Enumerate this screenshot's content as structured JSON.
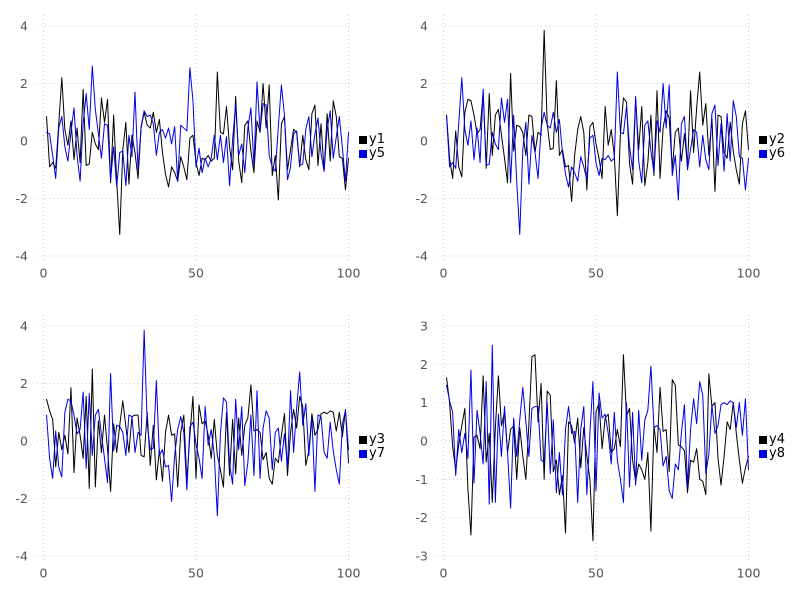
{
  "colors": {
    "series_black": "#000000",
    "series_blue": "#0000e6",
    "grid": "#c9c9e0",
    "tick_label": "#555555",
    "legend_text": "#000000",
    "background": "#ffffff"
  },
  "chart_data": [
    {
      "type": "line",
      "panel": "top-left",
      "title": "",
      "xlabel": "",
      "ylabel": "",
      "xlim": [
        0,
        100
      ],
      "ylim": [
        -4,
        4
      ],
      "x_ticks": [
        0,
        50,
        100
      ],
      "y_ticks": [
        -4,
        -2,
        0,
        2,
        4
      ],
      "grid": "dotted",
      "legend_position": "middle-right",
      "x_start": 1,
      "series": [
        {
          "name": "y1",
          "color": "#000000",
          "values": [
            0.85,
            -0.9,
            -0.75,
            -0.95,
            0.6,
            2.2,
            0.4,
            -0.15,
            0.7,
            -0.65,
            0.45,
            -0.75,
            1.8,
            -0.85,
            -0.8,
            0.3,
            -0.1,
            -0.3,
            1.5,
            0.65,
            1.45,
            -1.45,
            0.9,
            -1.4,
            -3.25,
            -0.3,
            0.65,
            -1.5,
            0.2,
            -0.4,
            -1.3,
            0.45,
            1.0,
            0.55,
            0.45,
            1.0,
            0.3,
            0.75,
            -0.4,
            -1.15,
            -1.6,
            -0.9,
            -1.1,
            -1.4,
            -0.55,
            -0.9,
            -1.35,
            0.1,
            0.2,
            -0.75,
            -1.2,
            -0.6,
            -0.65,
            -0.5,
            -0.7,
            -0.6,
            2.4,
            0.3,
            0.25,
            1.2,
            -0.2,
            -1.0,
            1.55,
            -0.7,
            -1.45,
            0.55,
            0.7,
            -0.35,
            -1.1,
            0.7,
            0.3,
            2.0,
            0.45,
            1.95,
            -1.2,
            -0.5,
            -2.05,
            0.6,
            0.85,
            -1.0,
            -0.3,
            0.4,
            0.3,
            -0.9,
            0.2,
            -0.65,
            -1.0,
            0.95,
            1.25,
            -0.85,
            0.6,
            -1.05,
            0.95,
            -0.7,
            1.4,
            0.85,
            -0.55,
            -0.6,
            -1.7,
            -0.6
          ]
        },
        {
          "name": "y5",
          "color": "#0000e6",
          "values": [
            0.3,
            0.25,
            -0.5,
            -1.3,
            0.45,
            0.85,
            -0.2,
            -0.7,
            0.3,
            1.15,
            -0.5,
            -1.4,
            0.6,
            1.65,
            0.4,
            2.6,
            1.1,
            0.25,
            -0.6,
            0.6,
            0.55,
            -1.35,
            -0.2,
            -1.6,
            -0.4,
            -0.35,
            -1.55,
            0.2,
            -0.55,
            1.7,
            -1.0,
            0.5,
            1.05,
            0.85,
            0.9,
            0.6,
            -0.5,
            0.3,
            0.4,
            0.1,
            0.45,
            -0.1,
            0.5,
            -1.4,
            0.55,
            0.45,
            0.35,
            2.55,
            1.4,
            -0.9,
            -0.25,
            -1.1,
            -0.6,
            -0.9,
            -0.6,
            0.2,
            -0.65,
            0.2,
            -0.75,
            0.15,
            -1.55,
            0.05,
            1.25,
            -0.5,
            -0.1,
            -1.1,
            0.45,
            1.15,
            -0.85,
            2.05,
            0.35,
            1.3,
            1.25,
            -0.5,
            -0.9,
            -1.05,
            0.5,
            1.95,
            0.9,
            -1.35,
            -0.9,
            0.25,
            0.35,
            -0.85,
            -0.8,
            0.4,
            0.85,
            -0.55,
            0.25,
            0.8,
            -0.45,
            -1.05,
            0.4,
            1.05,
            -0.6,
            0.15,
            0.85,
            -0.25,
            -1.4,
            0.3
          ]
        }
      ]
    },
    {
      "type": "line",
      "panel": "top-right",
      "title": "",
      "xlabel": "",
      "ylabel": "",
      "xlim": [
        0,
        100
      ],
      "ylim": [
        -4,
        4
      ],
      "x_ticks": [
        0,
        50,
        100
      ],
      "y_ticks": [
        -4,
        -2,
        0,
        2,
        4
      ],
      "grid": "dotted",
      "legend_position": "middle-right",
      "x_start": 1,
      "series": [
        {
          "name": "y2",
          "color": "#000000",
          "values": [
            0.9,
            -0.6,
            -1.3,
            0.35,
            -0.9,
            -1.25,
            1.0,
            1.45,
            1.4,
            0.9,
            0.25,
            0.4,
            1.7,
            -0.95,
            1.65,
            -0.5,
            0.9,
            1.1,
            0.2,
            -0.6,
            -1.45,
            2.35,
            -0.35,
            0.55,
            0.5,
            0.3,
            -0.5,
            0.9,
            0.85,
            -0.4,
            0.3,
            0.2,
            3.85,
            0.6,
            -0.3,
            -0.25,
            2.1,
            -0.5,
            -0.3,
            -0.9,
            -0.85,
            -2.1,
            -0.5,
            0.4,
            0.85,
            0.3,
            -1.7,
            0.5,
            0.65,
            -0.1,
            -0.6,
            -1.3,
            1.2,
            -0.15,
            0.4,
            -0.5,
            -2.6,
            0.25,
            1.5,
            1.35,
            -0.8,
            -1.5,
            1.45,
            -0.3,
            1.2,
            -1.55,
            -0.75,
            0.9,
            -1.2,
            1.75,
            -1.3,
            0.45,
            1.05,
            0.8,
            -1.0,
            0.3,
            0.45,
            -0.7,
            0.25,
            -0.9,
            1.75,
            -0.4,
            1.15,
            2.4,
            0.55,
            1.3,
            -0.5,
            0.8,
            -1.75,
            0.9,
            0.85,
            -0.4,
            -0.6,
            0.65,
            -0.35,
            -1.0,
            -1.5,
            0.6,
            1.05,
            -0.3
          ]
        },
        {
          "name": "y6",
          "color": "#0000e6",
          "values": [
            0.85,
            -0.9,
            -0.75,
            -0.95,
            0.6,
            2.2,
            0.4,
            -0.15,
            0.7,
            -0.65,
            0.45,
            -0.75,
            1.8,
            -0.85,
            -0.8,
            0.3,
            -0.1,
            -0.3,
            1.5,
            0.65,
            1.45,
            -1.45,
            0.9,
            -1.4,
            -3.25,
            -0.3,
            0.65,
            -1.5,
            0.2,
            -0.4,
            -1.3,
            0.45,
            1.0,
            0.55,
            0.45,
            1.0,
            0.3,
            0.75,
            -0.4,
            -1.15,
            -1.6,
            -0.9,
            -1.1,
            -1.4,
            -0.55,
            -0.9,
            -1.35,
            0.1,
            0.2,
            -0.75,
            -1.2,
            -0.6,
            -0.65,
            -0.5,
            -0.7,
            -0.6,
            2.4,
            0.3,
            0.25,
            1.2,
            -0.2,
            -1.0,
            1.55,
            -0.7,
            -1.45,
            0.55,
            0.7,
            -0.35,
            -1.1,
            0.7,
            0.3,
            2.0,
            0.45,
            1.95,
            -1.2,
            -0.5,
            -2.05,
            0.6,
            0.85,
            -1.0,
            -0.3,
            0.4,
            0.3,
            -0.9,
            0.2,
            -0.65,
            -1.0,
            0.95,
            1.25,
            -0.85,
            0.6,
            -1.05,
            0.95,
            -0.7,
            1.4,
            0.85,
            -0.55,
            -0.6,
            -1.7,
            -0.6
          ]
        }
      ]
    },
    {
      "type": "line",
      "panel": "bottom-left",
      "title": "",
      "xlabel": "",
      "ylabel": "",
      "xlim": [
        0,
        100
      ],
      "ylim": [
        -4,
        4
      ],
      "x_ticks": [
        0,
        50,
        100
      ],
      "y_ticks": [
        -4,
        -2,
        0,
        2,
        4
      ],
      "grid": "dotted",
      "legend_position": "middle-right",
      "x_start": 1,
      "series": [
        {
          "name": "y3",
          "color": "#000000",
          "values": [
            1.45,
            1.05,
            0.75,
            -0.9,
            0.3,
            -0.3,
            0.2,
            -0.45,
            1.85,
            -1.1,
            0.8,
            0.2,
            -0.6,
            1.55,
            -1.65,
            2.5,
            -1.6,
            0.7,
            -0.4,
            0.9,
            -0.3,
            -1.75,
            0.6,
            -0.4,
            0.55,
            1.4,
            0.5,
            -0.4,
            0.85,
            0.9,
            0.9,
            -0.5,
            -0.55,
            1.0,
            -0.85,
            0.55,
            -1.35,
            -0.3,
            -1.4,
            0.3,
            0.9,
            0.2,
            0.25,
            -1.6,
            0.3,
            0.9,
            -1.4,
            0.2,
            1.55,
            -1.3,
            1.25,
            0.6,
            0.7,
            0.2,
            -0.6,
            0.75,
            -0.5,
            -1.0,
            -1.6,
            1.0,
            -1.2,
            0.75,
            -1.15,
            0.8,
            -0.5,
            0.55,
            0.8,
            1.95,
            0.35,
            0.4,
            0.3,
            -0.65,
            -0.4,
            -1.3,
            -1.5,
            -0.6,
            -0.75,
            0.2,
            0.95,
            -1.2,
            0.3,
            1.1,
            0.45,
            1.55,
            1.2,
            -0.85,
            -0.35,
            0.95,
            0.2,
            0.4,
            0.95,
            1.0,
            0.95,
            1.05,
            1.0,
            0.35,
            1.0,
            0.15,
            1.1,
            -0.75
          ]
        },
        {
          "name": "y7",
          "color": "#0000e6",
          "values": [
            0.9,
            -0.6,
            -1.3,
            0.35,
            -0.9,
            -1.25,
            1.0,
            1.45,
            1.4,
            0.9,
            0.25,
            0.4,
            1.7,
            -0.95,
            1.65,
            -0.5,
            0.9,
            1.1,
            0.2,
            -0.6,
            -1.45,
            2.35,
            -0.35,
            0.55,
            0.5,
            0.3,
            -0.5,
            0.9,
            0.85,
            -0.4,
            0.3,
            0.2,
            3.85,
            0.6,
            -0.3,
            -0.25,
            2.1,
            -0.5,
            -0.3,
            -0.9,
            -0.85,
            -2.1,
            -0.5,
            0.4,
            0.85,
            0.3,
            -1.7,
            0.5,
            0.65,
            -0.1,
            -0.6,
            -1.3,
            1.2,
            -0.15,
            0.4,
            -0.5,
            -2.6,
            0.25,
            1.5,
            1.35,
            -0.8,
            -1.5,
            1.45,
            -0.3,
            1.2,
            -1.55,
            -0.75,
            0.9,
            -1.2,
            1.75,
            -1.3,
            0.45,
            1.05,
            0.8,
            -1.0,
            0.3,
            0.45,
            -0.7,
            0.25,
            -0.9,
            1.75,
            -0.4,
            1.15,
            2.4,
            0.55,
            1.3,
            -0.5,
            0.8,
            -1.75,
            0.9,
            0.85,
            -0.4,
            -0.6,
            0.65,
            -0.35,
            -1.0,
            -1.5,
            0.6,
            1.05,
            -0.3
          ]
        }
      ]
    },
    {
      "type": "line",
      "panel": "bottom-right",
      "title": "",
      "xlabel": "",
      "ylabel": "",
      "xlim": [
        0,
        100
      ],
      "ylim": [
        -3,
        3
      ],
      "x_ticks": [
        0,
        50,
        100
      ],
      "y_ticks": [
        -3,
        -2,
        -1,
        0,
        1,
        2,
        3
      ],
      "grid": "dotted",
      "legend_position": "middle-right",
      "x_start": 1,
      "series": [
        {
          "name": "y4",
          "color": "#000000",
          "values": [
            1.65,
            1.0,
            -0.15,
            -0.75,
            -0.1,
            0.4,
            0.85,
            -1.25,
            -2.45,
            0.1,
            0.15,
            -0.2,
            1.7,
            -0.55,
            0.2,
            -1.6,
            0.35,
            1.7,
            0.4,
            0.75,
            -0.3,
            0.3,
            0.4,
            -1.0,
            0.35,
            -0.4,
            -1.0,
            0.45,
            2.2,
            2.25,
            0.5,
            1.5,
            -1.0,
            1.3,
            1.2,
            -0.8,
            -0.5,
            -1.4,
            -0.9,
            -2.4,
            0.5,
            0.4,
            -0.05,
            0.6,
            -0.7,
            0.35,
            -0.4,
            -1.0,
            -2.6,
            0.75,
            1.0,
            -0.2,
            0.6,
            0.7,
            -0.3,
            -0.2,
            0.3,
            -0.15,
            2.25,
            0.65,
            0.85,
            -0.5,
            -1.05,
            -0.6,
            -0.75,
            -1.0,
            -0.3,
            -2.35,
            0.4,
            -0.3,
            1.4,
            0.25,
            0.3,
            -0.8,
            1.6,
            1.45,
            -0.1,
            -0.15,
            -0.25,
            -1.35,
            -0.5,
            -0.55,
            -0.2,
            -1.0,
            -1.05,
            -1.4,
            1.75,
            0.9,
            1.0,
            -0.45,
            -1.15,
            -0.4,
            0.5,
            0.3,
            1.0,
            0.2,
            -0.5,
            -1.1,
            -0.7,
            -0.4
          ]
        },
        {
          "name": "y8",
          "color": "#0000e6",
          "values": [
            1.45,
            1.05,
            0.75,
            -0.9,
            0.3,
            -0.3,
            0.2,
            -0.45,
            1.85,
            -1.1,
            0.8,
            0.2,
            -0.6,
            1.55,
            -1.65,
            2.5,
            -1.6,
            0.7,
            -0.4,
            0.9,
            -0.3,
            -1.75,
            0.6,
            -0.4,
            0.55,
            1.4,
            0.5,
            -0.4,
            0.85,
            0.9,
            0.9,
            -0.5,
            -0.55,
            1.0,
            -0.85,
            0.55,
            -1.35,
            -0.3,
            -1.4,
            0.3,
            0.9,
            0.2,
            0.25,
            -1.6,
            0.3,
            0.9,
            -1.4,
            0.2,
            1.55,
            -1.3,
            1.25,
            0.6,
            0.7,
            0.2,
            -0.6,
            0.75,
            -0.5,
            -1.0,
            -1.6,
            1.0,
            -1.2,
            0.75,
            -1.15,
            0.8,
            -0.5,
            0.55,
            0.8,
            1.95,
            0.35,
            0.4,
            0.3,
            -0.65,
            -0.4,
            -1.3,
            -1.5,
            -0.6,
            -0.75,
            0.2,
            0.95,
            -1.2,
            0.3,
            1.1,
            0.45,
            1.55,
            1.2,
            -0.85,
            -0.35,
            0.95,
            0.2,
            0.4,
            0.95,
            1.0,
            0.95,
            1.05,
            1.0,
            0.35,
            1.0,
            0.15,
            1.1,
            -0.75
          ]
        }
      ]
    }
  ]
}
